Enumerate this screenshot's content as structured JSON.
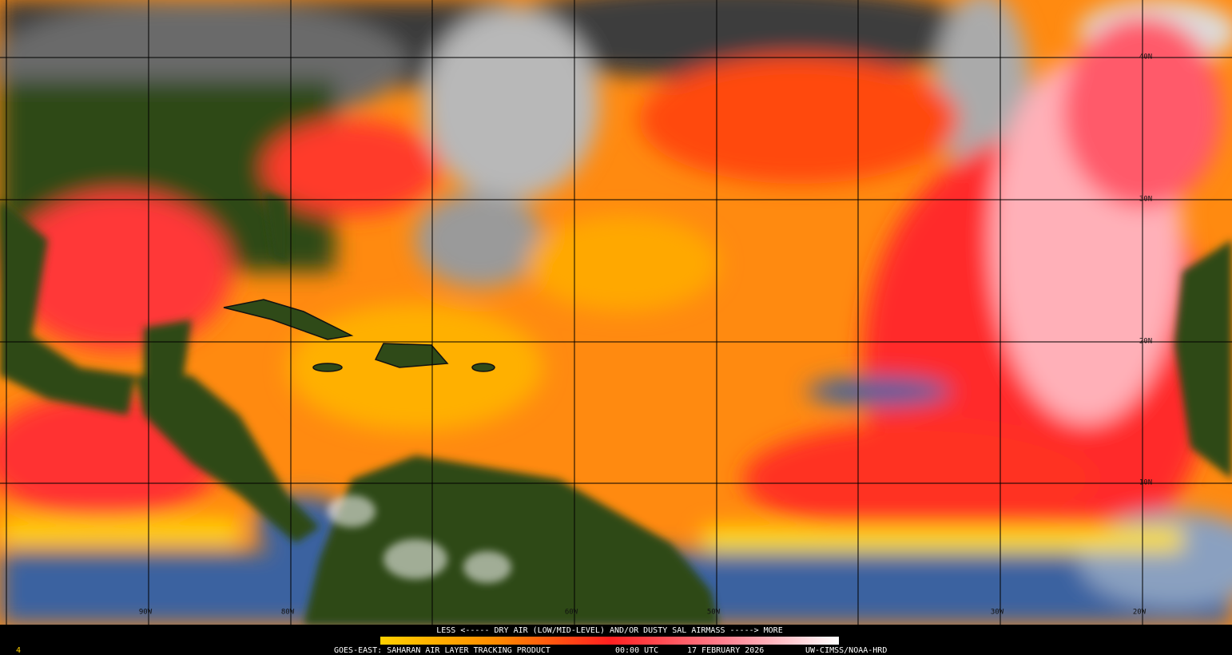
{
  "map": {
    "latitude_labels": [
      "40N",
      "30N",
      "20N",
      "10N"
    ],
    "longitude_labels": [
      "90W",
      "80W",
      "60W",
      "50W",
      "30W",
      "20W"
    ],
    "legend": {
      "text": "LESS <----- DRY AIR (LOW/MID-LEVEL) AND/OR DUSTY SAL AIRMASS -----> MORE"
    },
    "footer": {
      "frame": "4",
      "product": "GOES-EAST: SAHARAN AIR LAYER TRACKING PRODUCT",
      "time": "00:00 UTC",
      "date": "17 FEBRUARY 2026",
      "source": "UW-CIMSS/NOAA-HRD"
    }
  }
}
